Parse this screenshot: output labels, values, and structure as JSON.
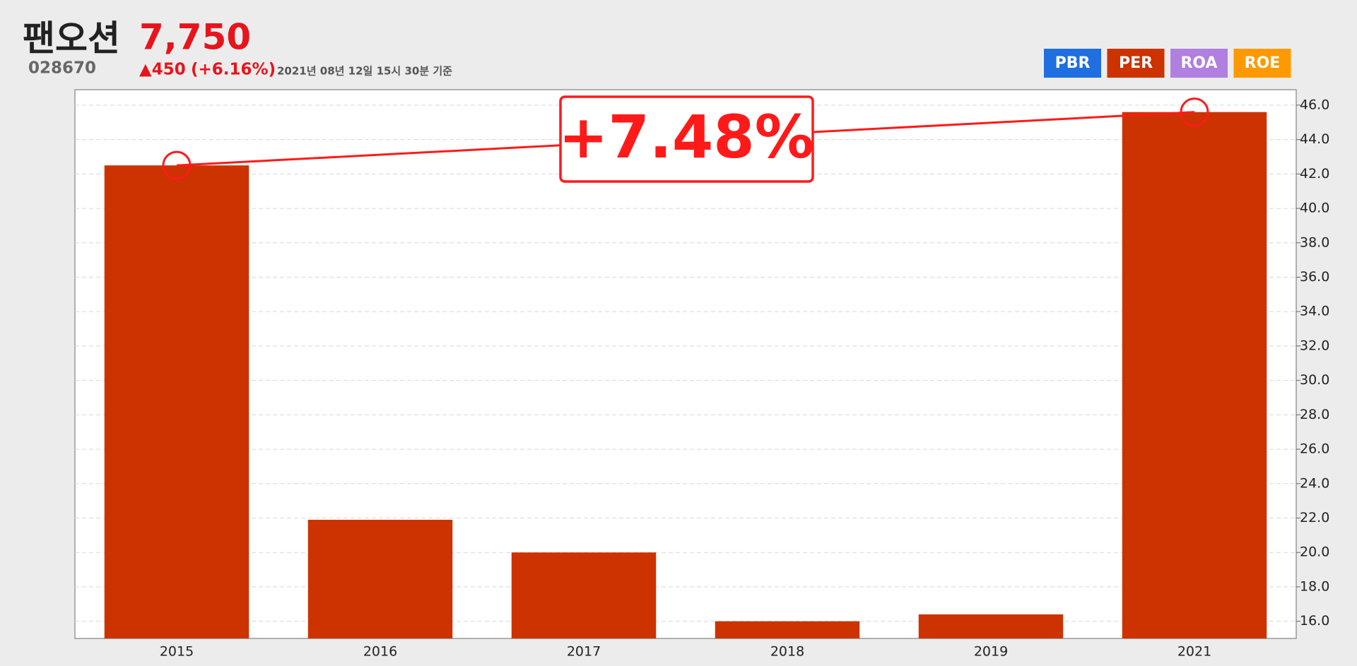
{
  "header": {
    "name": "팬오션",
    "code": "028670",
    "price": "7,750",
    "change": "▲450",
    "change_pct": "(+6.16%)",
    "timestamp": "2021년 08년 12일 15시 30분 기준"
  },
  "metric_tabs": [
    {
      "label": "PBR",
      "color": "#1f6fe0"
    },
    {
      "label": "PER",
      "color": "#cc3300"
    },
    {
      "label": "ROA",
      "color": "#b07fe0"
    },
    {
      "label": "ROE",
      "color": "#ff9900"
    }
  ],
  "chart_data": {
    "type": "bar",
    "categories": [
      "2015",
      "2016",
      "2017",
      "2018",
      "2019",
      "2021"
    ],
    "values": [
      42.5,
      21.9,
      20.0,
      16.0,
      16.4,
      45.6
    ],
    "color": "#cc3300",
    "ylim": [
      15.0,
      46.9
    ],
    "yticks": [
      {
        "value": 16,
        "label": "16.0"
      },
      {
        "value": 18,
        "label": "18.0"
      },
      {
        "value": 20,
        "label": "20.0"
      },
      {
        "value": 22,
        "label": "22.0"
      },
      {
        "value": 24,
        "label": "24.0"
      },
      {
        "value": 26,
        "label": "26.0"
      },
      {
        "value": 28,
        "label": "28.0"
      },
      {
        "value": 30,
        "label": "30.0"
      },
      {
        "value": 32,
        "label": "32.0"
      },
      {
        "value": 34,
        "label": "34.0"
      },
      {
        "value": 36,
        "label": "36.0"
      },
      {
        "value": 38,
        "label": "38.0"
      },
      {
        "value": 40,
        "label": "40.0"
      },
      {
        "value": 42,
        "label": "42.0"
      },
      {
        "value": 44,
        "label": "44.0"
      },
      {
        "value": 46,
        "label": "46.0"
      }
    ],
    "grid": true,
    "annotation": "+7.48%",
    "annotation_color": "#ff1a1a"
  }
}
